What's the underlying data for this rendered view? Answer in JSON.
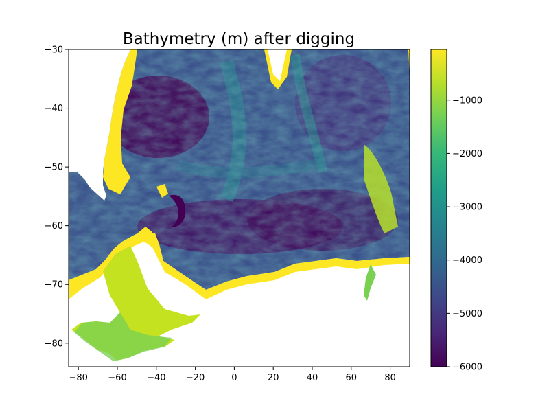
{
  "chart_data": {
    "type": "heatmap",
    "title": "Bathymetry (m) after digging",
    "xlabel": "",
    "ylabel": "",
    "xlim": [
      -85,
      90
    ],
    "ylim": [
      -84,
      -30
    ],
    "x_ticks": [
      -80,
      -60,
      -40,
      -20,
      0,
      20,
      40,
      60,
      80
    ],
    "x_tick_labels": [
      "−80",
      "−60",
      "−40",
      "−20",
      "0",
      "20",
      "40",
      "60",
      "80"
    ],
    "y_ticks": [
      -30,
      -40,
      -50,
      -60,
      -70,
      -80
    ],
    "y_tick_labels": [
      "−30",
      "−40",
      "−50",
      "−60",
      "−70",
      "−80"
    ],
    "colorbar": {
      "colormap": "viridis",
      "range": [
        -6000,
        -50
      ],
      "ticks": [
        -1000,
        -2000,
        -3000,
        -4000,
        -5000,
        -6000
      ],
      "tick_labels": [
        "−1000",
        "−2000",
        "−3000",
        "−4000",
        "−5000",
        "−6000"
      ]
    },
    "grid": false,
    "colors": {
      "deep": "#440154",
      "mid": "#21918c",
      "shallow": "#fde725",
      "land": "#ffffff"
    }
  }
}
